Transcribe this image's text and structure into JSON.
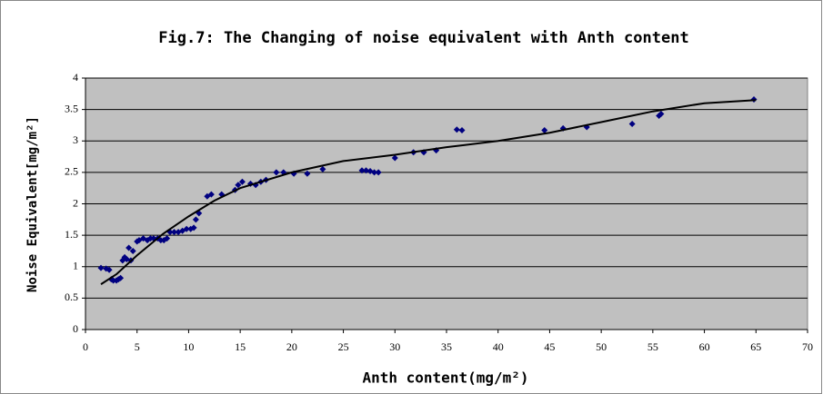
{
  "chart_data": {
    "type": "scatter",
    "title": "Fig.7: The Changing of noise equivalent with Anth content",
    "xlabel": "Anth content(mg/m²)",
    "ylabel": "Noise Equivalent[mg/m²]",
    "xlim": [
      0,
      70
    ],
    "ylim": [
      0,
      4
    ],
    "xticks": [
      0,
      5,
      10,
      15,
      20,
      25,
      30,
      35,
      40,
      45,
      50,
      55,
      60,
      65,
      70
    ],
    "yticks": [
      0,
      0.5,
      1,
      1.5,
      2,
      2.5,
      3,
      3.5,
      4
    ],
    "grid": true,
    "background": "#c0c0c0",
    "series": [
      {
        "type": "scatter",
        "color": "#000080",
        "x": [
          1.5,
          2,
          2.3,
          2.5,
          2.7,
          3,
          3.2,
          3.4,
          3.6,
          3.8,
          4,
          4.2,
          4.4,
          4.6,
          5,
          5.2,
          5.6,
          6,
          6.3,
          6.6,
          7,
          7.3,
          7.6,
          7.9,
          8.2,
          8.6,
          9,
          9.4,
          9.8,
          10.2,
          10.5,
          10.7,
          11,
          11.8,
          12.2,
          13.2,
          14.5,
          14.8,
          15.2,
          16,
          16.5,
          17,
          17.5,
          18.5,
          19.2,
          20.2,
          21.5,
          23,
          26.8,
          27.2,
          27.6,
          28,
          28.4,
          30,
          31.8,
          32.8,
          34,
          36,
          36.5,
          44.5,
          46.3,
          48.6,
          53,
          55.6,
          55.8,
          64.8
        ],
        "values": [
          0.98,
          0.97,
          0.95,
          0.8,
          0.78,
          0.78,
          0.8,
          0.82,
          1.1,
          1.15,
          1.12,
          1.3,
          1.1,
          1.25,
          1.4,
          1.42,
          1.45,
          1.42,
          1.45,
          1.45,
          1.45,
          1.42,
          1.42,
          1.45,
          1.55,
          1.55,
          1.55,
          1.57,
          1.6,
          1.6,
          1.62,
          1.75,
          1.85,
          2.12,
          2.15,
          2.15,
          2.22,
          2.3,
          2.35,
          2.32,
          2.3,
          2.35,
          2.38,
          2.5,
          2.5,
          2.48,
          2.48,
          2.55,
          2.53,
          2.53,
          2.52,
          2.5,
          2.5,
          2.73,
          2.82,
          2.82,
          2.85,
          3.18,
          3.17,
          3.17,
          3.2,
          3.22,
          3.27,
          3.4,
          3.43,
          3.66
        ]
      },
      {
        "type": "line",
        "color": "#000000",
        "x": [
          1.5,
          3,
          5,
          7.5,
          10,
          12.5,
          15,
          20,
          25,
          30,
          35,
          40,
          45,
          50,
          55,
          60,
          65
        ],
        "values": [
          0.72,
          0.88,
          1.18,
          1.52,
          1.8,
          2.05,
          2.25,
          2.5,
          2.68,
          2.78,
          2.9,
          3.0,
          3.13,
          3.3,
          3.47,
          3.6,
          3.65
        ]
      }
    ]
  }
}
